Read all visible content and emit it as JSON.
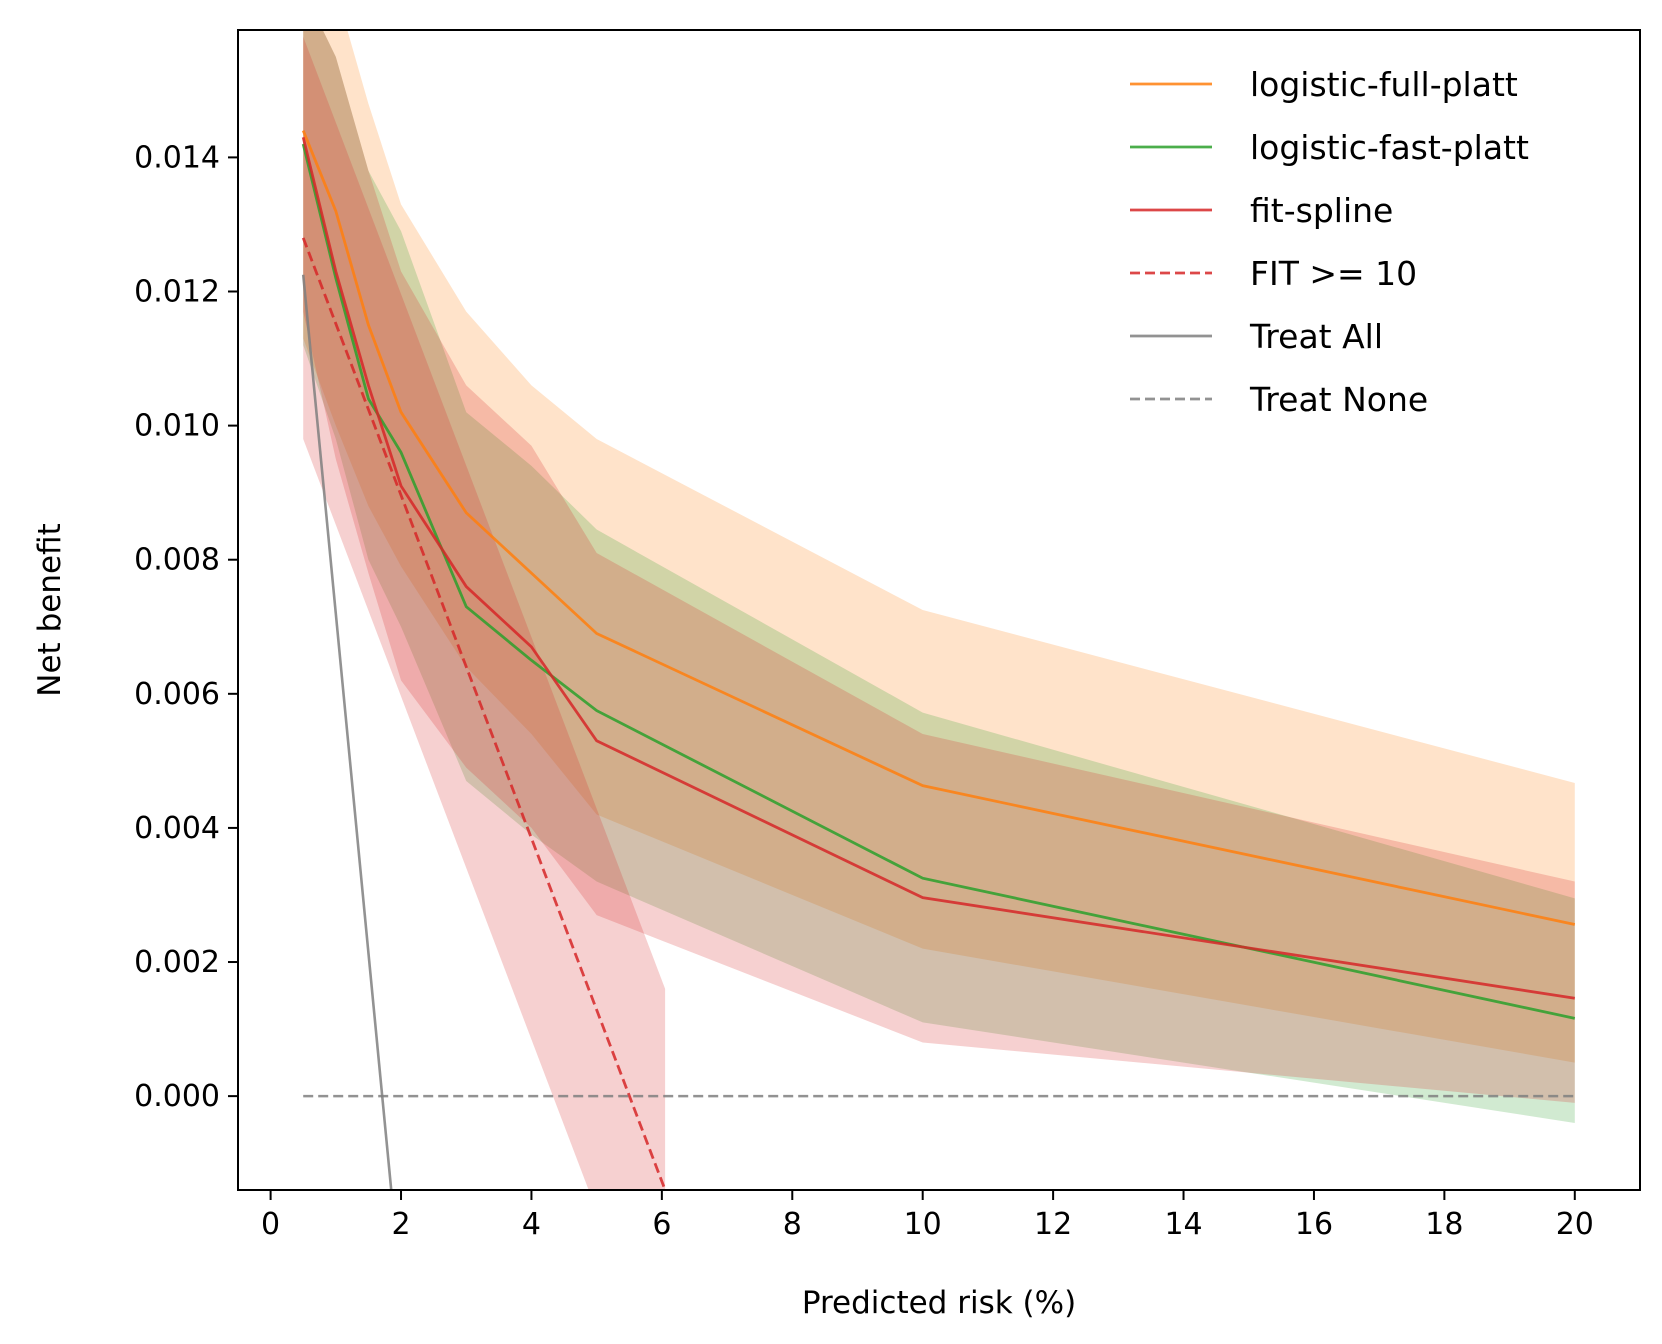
{
  "chart_data": {
    "type": "line",
    "xlabel": "Predicted risk (%)",
    "ylabel": "Net benefit",
    "xlim": [
      -0.5,
      21
    ],
    "ylim": [
      -0.0014,
      0.0159
    ],
    "xticks": [
      0,
      2,
      4,
      6,
      8,
      10,
      12,
      14,
      16,
      18,
      20
    ],
    "yticks": [
      0.0,
      0.002,
      0.004,
      0.006,
      0.008,
      0.01,
      0.012,
      0.014
    ],
    "xtick_labels": [
      "0",
      "2",
      "4",
      "6",
      "8",
      "10",
      "12",
      "14",
      "16",
      "18",
      "20"
    ],
    "ytick_labels": [
      "0.000",
      "0.002",
      "0.004",
      "0.006",
      "0.008",
      "0.010",
      "0.012",
      "0.014"
    ],
    "grid": false,
    "legend_position": "top-right",
    "series": [
      {
        "name": "logistic-full-platt",
        "color": "#ff7f0e",
        "style": "solid",
        "x": [
          0.5,
          1,
          1.5,
          2,
          3,
          4,
          5,
          10,
          20
        ],
        "y": [
          0.0144,
          0.0132,
          0.0115,
          0.0102,
          0.0087,
          0.0078,
          0.0069,
          0.00463,
          0.00256
        ],
        "ci_lower": [
          0.0113,
          0.01,
          0.0088,
          0.0079,
          0.0064,
          0.0054,
          0.0042,
          0.0022,
          0.0005
        ],
        "ci_upper": [
          0.0165,
          0.0165,
          0.0148,
          0.0133,
          0.0117,
          0.0106,
          0.0098,
          0.00725,
          0.00467
        ]
      },
      {
        "name": "logistic-fast-platt",
        "color": "#2ca02c",
        "style": "solid",
        "x": [
          0.5,
          1,
          1.5,
          2,
          3,
          4,
          5,
          10,
          20
        ],
        "y": [
          0.0142,
          0.0122,
          0.0104,
          0.0096,
          0.0073,
          0.0065,
          0.00575,
          0.00325,
          0.00116
        ],
        "ci_lower": [
          0.0112,
          0.0098,
          0.008,
          0.007,
          0.0047,
          0.0039,
          0.0032,
          0.0011,
          -0.0004
        ],
        "ci_upper": [
          0.0165,
          0.0155,
          0.0138,
          0.0129,
          0.0102,
          0.0094,
          0.00845,
          0.00572,
          0.00295
        ]
      },
      {
        "name": "fit-spline",
        "color": "#d62728",
        "style": "solid",
        "x": [
          0.5,
          1,
          1.5,
          2,
          3,
          4,
          5,
          10,
          20
        ],
        "y": [
          0.0143,
          0.0123,
          0.0106,
          0.0091,
          0.0076,
          0.0067,
          0.0053,
          0.00296,
          0.00146
        ],
        "ci_lower": [
          0.0117,
          0.0095,
          0.0078,
          0.0062,
          0.0049,
          0.004,
          0.0027,
          0.0008,
          -0.0001
        ],
        "ci_upper": [
          0.0165,
          0.0155,
          0.0138,
          0.0123,
          0.0106,
          0.0097,
          0.0081,
          0.0054,
          0.0032
        ]
      },
      {
        "name": "FIT >= 10",
        "color": "#d62728",
        "style": "dashed",
        "x": [
          0.5,
          6.05
        ],
        "y": [
          0.0128,
          -0.0014
        ],
        "ci_lower": [
          0.0098,
          -0.0044
        ],
        "ci_upper": [
          0.0158,
          0.0016
        ]
      },
      {
        "name": "Treat All",
        "color": "#7f7f7f",
        "style": "solid",
        "x": [
          0.5,
          1.85
        ],
        "y": [
          0.01225,
          -0.0014
        ]
      },
      {
        "name": "Treat None",
        "color": "#7f7f7f",
        "style": "dashed",
        "x": [
          0.5,
          20
        ],
        "y": [
          0,
          0
        ]
      }
    ]
  }
}
